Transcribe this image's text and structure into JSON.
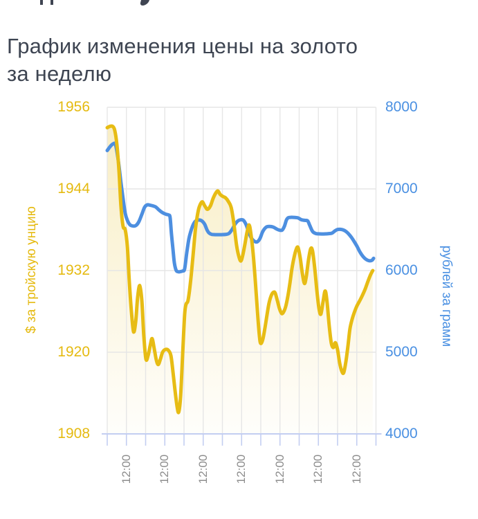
{
  "header": {
    "title_line1": "График изменения цены на золото",
    "title_line2": "за неделю"
  },
  "colors": {
    "gold_accent": "#e7bc14",
    "gold_label": "#e5ba10",
    "blue_accent": "#4d8fe0",
    "blue_label": "#4a90e2",
    "title_text": "#3e4552",
    "x_label_text": "#8c8c8c",
    "gridline": "#e6e6e6",
    "bottom_axis": "#c3cef1",
    "background": "#ffffff"
  },
  "chart_data": {
    "type": "line",
    "title": "График изменения цены на золото за неделю",
    "grid": true,
    "legend": "none",
    "x_axis": {
      "tick_labels": [
        "12:00",
        "12:00",
        "12:00",
        "12:00",
        "12:00",
        "12:00",
        "12:00"
      ],
      "vertical_gridlines": 15,
      "labeled_gridline_indexes": [
        1,
        3,
        5,
        7,
        9,
        11,
        13
      ]
    },
    "left_axis": {
      "label": "$ за тройскую унцию",
      "ticks": [
        1956,
        1944,
        1932,
        1920,
        1908
      ],
      "min": 1908,
      "max": 1956,
      "color": "#e5ba10"
    },
    "right_axis": {
      "label": "рублей за грамм",
      "ticks": [
        8000,
        7000,
        6000,
        5000,
        4000
      ],
      "min": 4000,
      "max": 8000,
      "color": "#4a90e2"
    },
    "series": [
      {
        "name": "$ за тройскую унцию",
        "axis": "left",
        "color": "#e7bc14",
        "area_fill": true,
        "points": [
          [
            0.0,
            1953.0
          ],
          [
            0.01,
            1953.2
          ],
          [
            0.02,
            1953.2
          ],
          [
            0.028,
            1952.6
          ],
          [
            0.036,
            1950.5
          ],
          [
            0.044,
            1946.5
          ],
          [
            0.051,
            1941.5
          ],
          [
            0.059,
            1938.5
          ],
          [
            0.067,
            1938.0
          ],
          [
            0.075,
            1935.5
          ],
          [
            0.082,
            1930.5
          ],
          [
            0.09,
            1926.0
          ],
          [
            0.098,
            1923.0
          ],
          [
            0.106,
            1924.5
          ],
          [
            0.113,
            1928.0
          ],
          [
            0.121,
            1929.8
          ],
          [
            0.129,
            1927.5
          ],
          [
            0.136,
            1922.5
          ],
          [
            0.144,
            1919.0
          ],
          [
            0.152,
            1919.5
          ],
          [
            0.16,
            1921.0
          ],
          [
            0.167,
            1922.0
          ],
          [
            0.175,
            1920.5
          ],
          [
            0.183,
            1918.8
          ],
          [
            0.19,
            1918.2
          ],
          [
            0.198,
            1919.0
          ],
          [
            0.206,
            1920.0
          ],
          [
            0.216,
            1920.4
          ],
          [
            0.227,
            1920.3
          ],
          [
            0.237,
            1919.5
          ],
          [
            0.245,
            1917.0
          ],
          [
            0.252,
            1914.5
          ],
          [
            0.26,
            1912.0
          ],
          [
            0.266,
            1911.2
          ],
          [
            0.273,
            1913.5
          ],
          [
            0.281,
            1920.0
          ],
          [
            0.288,
            1925.5
          ],
          [
            0.293,
            1927.0
          ],
          [
            0.3,
            1927.5
          ],
          [
            0.306,
            1929.0
          ],
          [
            0.313,
            1931.5
          ],
          [
            0.32,
            1934.5
          ],
          [
            0.328,
            1938.0
          ],
          [
            0.335,
            1940.0
          ],
          [
            0.342,
            1941.3
          ],
          [
            0.353,
            1942.1
          ],
          [
            0.363,
            1941.5
          ],
          [
            0.373,
            1941.0
          ],
          [
            0.384,
            1941.5
          ],
          [
            0.394,
            1942.6
          ],
          [
            0.404,
            1943.4
          ],
          [
            0.412,
            1943.7
          ],
          [
            0.42,
            1943.2
          ],
          [
            0.43,
            1942.9
          ],
          [
            0.44,
            1942.7
          ],
          [
            0.45,
            1942.2
          ],
          [
            0.461,
            1941.3
          ],
          [
            0.471,
            1939.0
          ],
          [
            0.481,
            1935.8
          ],
          [
            0.489,
            1934.2
          ],
          [
            0.497,
            1933.4
          ],
          [
            0.504,
            1934.2
          ],
          [
            0.512,
            1935.8
          ],
          [
            0.52,
            1937.6
          ],
          [
            0.528,
            1938.7
          ],
          [
            0.535,
            1937.3
          ],
          [
            0.543,
            1934.5
          ],
          [
            0.551,
            1930.5
          ],
          [
            0.559,
            1926.0
          ],
          [
            0.566,
            1922.5
          ],
          [
            0.571,
            1921.3
          ],
          [
            0.579,
            1921.9
          ],
          [
            0.587,
            1923.6
          ],
          [
            0.595,
            1925.6
          ],
          [
            0.602,
            1927.2
          ],
          [
            0.61,
            1928.3
          ],
          [
            0.618,
            1928.8
          ],
          [
            0.625,
            1928.7
          ],
          [
            0.633,
            1927.6
          ],
          [
            0.641,
            1926.4
          ],
          [
            0.649,
            1925.7
          ],
          [
            0.656,
            1925.9
          ],
          [
            0.664,
            1926.7
          ],
          [
            0.672,
            1928.2
          ],
          [
            0.68,
            1930.2
          ],
          [
            0.687,
            1932.2
          ],
          [
            0.695,
            1933.9
          ],
          [
            0.703,
            1935.1
          ],
          [
            0.71,
            1935.4
          ],
          [
            0.718,
            1933.9
          ],
          [
            0.726,
            1931.6
          ],
          [
            0.734,
            1930.1
          ],
          [
            0.741,
            1931.2
          ],
          [
            0.749,
            1933.6
          ],
          [
            0.757,
            1935.2
          ],
          [
            0.764,
            1934.9
          ],
          [
            0.772,
            1932.4
          ],
          [
            0.78,
            1929.1
          ],
          [
            0.788,
            1926.4
          ],
          [
            0.795,
            1925.6
          ],
          [
            0.803,
            1927.4
          ],
          [
            0.811,
            1929.0
          ],
          [
            0.818,
            1927.4
          ],
          [
            0.826,
            1923.9
          ],
          [
            0.834,
            1921.3
          ],
          [
            0.842,
            1920.7
          ],
          [
            0.849,
            1921.4
          ],
          [
            0.857,
            1920.4
          ],
          [
            0.865,
            1918.4
          ],
          [
            0.873,
            1917.2
          ],
          [
            0.88,
            1917.0
          ],
          [
            0.888,
            1918.6
          ],
          [
            0.896,
            1921.0
          ],
          [
            0.903,
            1923.4
          ],
          [
            0.911,
            1924.8
          ],
          [
            0.919,
            1925.8
          ],
          [
            0.929,
            1926.8
          ],
          [
            0.94,
            1927.6
          ],
          [
            0.95,
            1928.4
          ],
          [
            0.96,
            1929.3
          ],
          [
            0.97,
            1930.4
          ],
          [
            0.98,
            1931.4
          ],
          [
            0.988,
            1932.0
          ]
        ]
      },
      {
        "name": "рублей за грамм",
        "axis": "right",
        "color": "#4d8fe0",
        "area_fill": false,
        "points": [
          [
            0.0,
            7470
          ],
          [
            0.01,
            7515
          ],
          [
            0.021,
            7550
          ],
          [
            0.031,
            7540
          ],
          [
            0.041,
            7350
          ],
          [
            0.051,
            7080
          ],
          [
            0.059,
            6880
          ],
          [
            0.067,
            6700
          ],
          [
            0.075,
            6615
          ],
          [
            0.085,
            6560
          ],
          [
            0.098,
            6545
          ],
          [
            0.108,
            6555
          ],
          [
            0.118,
            6600
          ],
          [
            0.129,
            6690
          ],
          [
            0.139,
            6775
          ],
          [
            0.149,
            6805
          ],
          [
            0.16,
            6800
          ],
          [
            0.17,
            6792
          ],
          [
            0.18,
            6780
          ],
          [
            0.19,
            6750
          ],
          [
            0.201,
            6720
          ],
          [
            0.211,
            6700
          ],
          [
            0.221,
            6688
          ],
          [
            0.229,
            6680
          ],
          [
            0.234,
            6650
          ],
          [
            0.239,
            6450
          ],
          [
            0.245,
            6250
          ],
          [
            0.25,
            6090
          ],
          [
            0.257,
            6000
          ],
          [
            0.266,
            5985
          ],
          [
            0.273,
            5988
          ],
          [
            0.281,
            5995
          ],
          [
            0.288,
            6020
          ],
          [
            0.296,
            6220
          ],
          [
            0.304,
            6390
          ],
          [
            0.311,
            6480
          ],
          [
            0.319,
            6555
          ],
          [
            0.327,
            6600
          ],
          [
            0.337,
            6618
          ],
          [
            0.347,
            6617
          ],
          [
            0.355,
            6600
          ],
          [
            0.363,
            6565
          ],
          [
            0.371,
            6500
          ],
          [
            0.379,
            6460
          ],
          [
            0.389,
            6443
          ],
          [
            0.401,
            6440
          ],
          [
            0.414,
            6440
          ],
          [
            0.427,
            6440
          ],
          [
            0.44,
            6443
          ],
          [
            0.453,
            6455
          ],
          [
            0.466,
            6510
          ],
          [
            0.476,
            6570
          ],
          [
            0.487,
            6610
          ],
          [
            0.497,
            6622
          ],
          [
            0.507,
            6615
          ],
          [
            0.517,
            6560
          ],
          [
            0.527,
            6465
          ],
          [
            0.537,
            6395
          ],
          [
            0.548,
            6358
          ],
          [
            0.558,
            6352
          ],
          [
            0.568,
            6390
          ],
          [
            0.579,
            6480
          ],
          [
            0.592,
            6533
          ],
          [
            0.605,
            6540
          ],
          [
            0.618,
            6532
          ],
          [
            0.631,
            6508
          ],
          [
            0.641,
            6495
          ],
          [
            0.651,
            6496
          ],
          [
            0.659,
            6540
          ],
          [
            0.667,
            6620
          ],
          [
            0.674,
            6648
          ],
          [
            0.685,
            6652
          ],
          [
            0.698,
            6650
          ],
          [
            0.71,
            6645
          ],
          [
            0.723,
            6622
          ],
          [
            0.736,
            6615
          ],
          [
            0.746,
            6608
          ],
          [
            0.754,
            6550
          ],
          [
            0.764,
            6480
          ],
          [
            0.775,
            6455
          ],
          [
            0.785,
            6450
          ],
          [
            0.798,
            6448
          ],
          [
            0.811,
            6449
          ],
          [
            0.824,
            6452
          ],
          [
            0.836,
            6458
          ],
          [
            0.847,
            6485
          ],
          [
            0.857,
            6503
          ],
          [
            0.867,
            6505
          ],
          [
            0.878,
            6498
          ],
          [
            0.888,
            6480
          ],
          [
            0.898,
            6450
          ],
          [
            0.909,
            6405
          ],
          [
            0.919,
            6355
          ],
          [
            0.929,
            6300
          ],
          [
            0.94,
            6230
          ],
          [
            0.95,
            6180
          ],
          [
            0.96,
            6145
          ],
          [
            0.97,
            6125
          ],
          [
            0.978,
            6120
          ],
          [
            0.986,
            6128
          ],
          [
            0.991,
            6150
          ]
        ]
      }
    ]
  }
}
